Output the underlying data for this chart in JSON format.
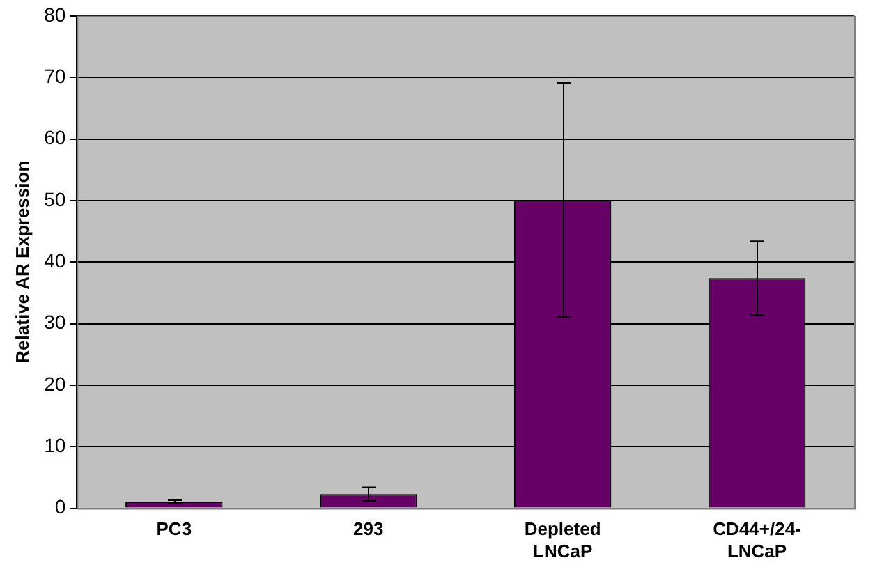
{
  "chart_data": {
    "type": "bar",
    "ylabel": "Relative AR Expression",
    "categories": [
      "PC3",
      "293",
      "Depleted LNCaP",
      "CD44+/24- LNCaP"
    ],
    "values": [
      1.1,
      2.3,
      50.1,
      37.4
    ],
    "errors": [
      0.2,
      1.1,
      19,
      6
    ],
    "color": "#660066",
    "ylim": [
      0,
      80
    ],
    "yticks": [
      0,
      10,
      20,
      30,
      40,
      50,
      60,
      70,
      80
    ],
    "grid": "y",
    "legend": false
  }
}
